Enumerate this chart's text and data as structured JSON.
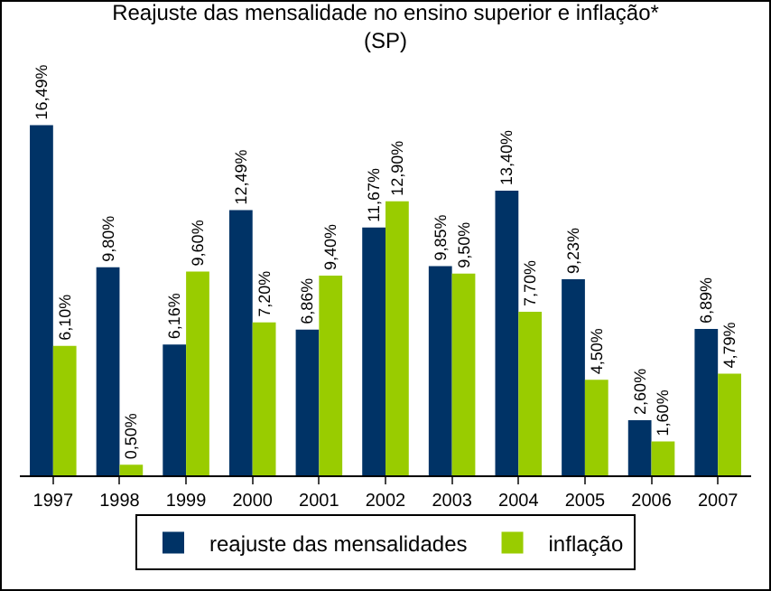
{
  "chart_data": {
    "type": "bar",
    "title": "Reajuste das mensalidade no ensino superior e inflação*\n(SP)",
    "categories": [
      "1997",
      "1998",
      "1999",
      "2000",
      "2001",
      "2002",
      "2003",
      "2004",
      "2005",
      "2006",
      "2007"
    ],
    "series": [
      {
        "name": "reajuste das mensalidades",
        "color": "#003366",
        "values": [
          16.49,
          9.8,
          6.16,
          12.49,
          6.86,
          11.67,
          9.85,
          13.4,
          9.23,
          2.6,
          6.89
        ],
        "value_labels": [
          "16,49%",
          "9,80%",
          "6,16%",
          "12,49%",
          "6,86%",
          "11,67%",
          "9,85%",
          "13,40%",
          "9,23%",
          "2,60%",
          "6,89%"
        ]
      },
      {
        "name": "inflação",
        "color": "#99cc00",
        "values": [
          6.1,
          0.5,
          9.6,
          7.2,
          9.4,
          12.9,
          9.5,
          7.7,
          4.5,
          1.6,
          4.79
        ],
        "value_labels": [
          "6,10%",
          "0,50%",
          "9,60%",
          "7,20%",
          "9,40%",
          "12,90%",
          "9,50%",
          "7,70%",
          "4,50%",
          "1,60%",
          "4,79%"
        ]
      }
    ],
    "grid": false,
    "legend": "bottom"
  }
}
